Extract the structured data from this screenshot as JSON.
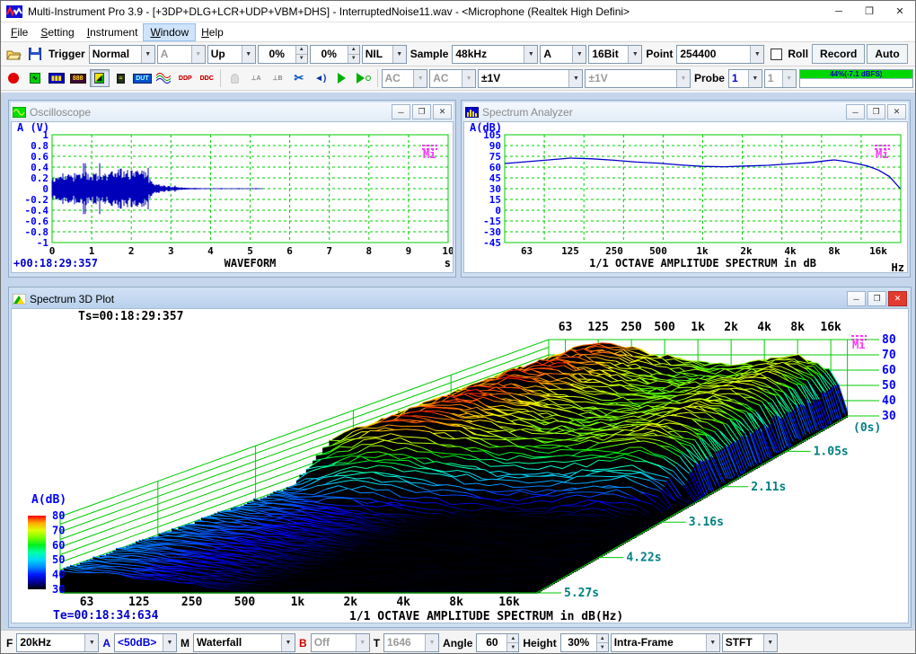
{
  "window": {
    "title": "Multi-Instrument Pro 3.9   -   [+3DP+DLG+LCR+UDP+VBM+DHS]   -   InterruptedNoise11.wav   -   <Microphone (Realtek High Defini>",
    "controls": {
      "minimize": "─",
      "maximize": "❐",
      "close": "✕"
    }
  },
  "menu": {
    "items": [
      "File",
      "Setting",
      "Instrument",
      "Window",
      "Help"
    ],
    "active_item": "Window"
  },
  "toolbar1": {
    "trigger_label": "Trigger",
    "trigger_mode": "Normal",
    "trigger_source": "A",
    "trigger_edge": "Up",
    "trigger_level": "0%",
    "trigger_delay": "0%",
    "trigger_coupling": "NIL",
    "sample_label": "Sample",
    "sample_rate": "48kHz",
    "sample_channel": "A",
    "sample_bits": "16Bit",
    "point_label": "Point",
    "point_count": "254400",
    "roll_label": "Roll",
    "record_label": "Record",
    "auto_label": "Auto"
  },
  "toolbar2": {
    "glyphs": {
      "multimeter": "888",
      "dut": "DUT",
      "ddp": "DDP",
      "ddc": "DDC",
      "marker_a": "⊥A",
      "marker_b": "⊥B"
    },
    "coupling_a": "AC",
    "coupling_b": "AC",
    "range_a": "±1V",
    "range_b": "±1V",
    "probe_label": "Probe",
    "probe_a": "1",
    "probe_b": "1",
    "level_meter_text": "44%(-7.1 dBFS)",
    "level_meter_color": "#00d800"
  },
  "windows": [
    {
      "title": "Oscilloscope"
    },
    {
      "title": "Spectrum Analyzer"
    },
    {
      "title": "Spectrum 3D Plot"
    }
  ],
  "statusbar": {
    "f_label": "F",
    "f_value": "20kHz",
    "a_label": "A",
    "a_value": "<50dB>",
    "m_label": "M",
    "m_value": "Waterfall",
    "b_label": "B",
    "b_value": "Off",
    "t_label": "T",
    "t_value": "1646",
    "angle_label": "Angle",
    "angle_value": "60",
    "height_label": "Height",
    "height_value": "30%",
    "frame_mode": "Intra-Frame",
    "transform": "STFT"
  },
  "chart_data": [
    {
      "type": "waveform",
      "corner_label": "A (V)",
      "title": "WAVEFORM",
      "x_unit": "s",
      "timestamp": "+00:18:29:357",
      "x_range_s": [
        0,
        10
      ],
      "y_range_v": [
        -1,
        1
      ],
      "y_ticks": [
        "1",
        "0.8",
        "0.6",
        "0.4",
        "0.2",
        "0",
        "-0.2",
        "-0.4",
        "-0.6",
        "-0.8",
        "-1"
      ],
      "x_ticks": [
        "0",
        "1",
        "2",
        "3",
        "4",
        "5",
        "6",
        "7",
        "8",
        "9",
        "10"
      ],
      "signal_end_s": 5.32,
      "envelope_t": [
        0,
        0.1,
        0.4,
        0.7,
        1.0,
        1.3,
        1.6,
        1.85,
        2.0,
        2.15,
        2.3,
        2.45,
        2.6,
        2.8,
        3.0,
        3.2,
        3.5,
        4.0,
        5.2,
        5.32
      ],
      "envelope_v": [
        0.26,
        0.3,
        0.28,
        0.3,
        0.31,
        0.3,
        0.34,
        0.4,
        0.36,
        0.42,
        0.36,
        0.22,
        0.12,
        0.07,
        0.045,
        0.028,
        0.015,
        0.009,
        0.007,
        0.006
      ],
      "line_color": "#0000bb",
      "grid_color": "#00cc00"
    },
    {
      "type": "line",
      "corner_label": "A(dB)",
      "title": "1/1 OCTAVE AMPLITUDE SPECTRUM in dB",
      "x_unit": "Hz",
      "y_ticks": [
        "105",
        "90",
        "75",
        "60",
        "45",
        "30",
        "15",
        "0",
        "-15",
        "-30",
        "-45"
      ],
      "y_range_db": [
        -45,
        105
      ],
      "freq_labels": [
        "63",
        "125",
        "250",
        "500",
        "1k",
        "2k",
        "4k",
        "8k",
        "16k"
      ],
      "points": {
        "freqs": [
          44.5,
          63,
          89,
          125,
          177,
          250,
          354,
          500,
          707,
          1000,
          1414,
          2000,
          2828,
          4000,
          5657,
          7127,
          8000,
          9514,
          11314,
          13454,
          16000,
          19027,
          22627
        ],
        "db": [
          65,
          67.5,
          70,
          72.5,
          71.5,
          69.5,
          67,
          65.5,
          63,
          61,
          60.5,
          61.5,
          62.5,
          64.5,
          66.5,
          69,
          70,
          68,
          65,
          61.5,
          56,
          47,
          30
        ]
      },
      "line_color": "#0000cc",
      "grid_color": "#00cc00"
    },
    {
      "type": "waterfall3d",
      "title": "1/1 OCTAVE AMPLITUDE SPECTRUM in dB(Hz)",
      "z_label": "A(dB)",
      "ts_label": "Ts=00:18:29:357",
      "te_label": "Te=00:18:34:634",
      "freq_labels": [
        "63",
        "125",
        "250",
        "500",
        "1k",
        "2k",
        "4k",
        "8k",
        "16k"
      ],
      "octave_freqs": [
        63,
        125,
        250,
        500,
        1000,
        2000,
        4000,
        8000,
        16000
      ],
      "amp_ticks": [
        80,
        70,
        60,
        50,
        40,
        30
      ],
      "amp_range": [
        30,
        80
      ],
      "time_labels": [
        "(0s)",
        "1.05s",
        "2.11s",
        "3.16s",
        "4.22s",
        "5.27s"
      ],
      "time_span_s": 5.27,
      "burst_end_s": 2.35,
      "silence_s": 3.35,
      "base_spectrum": {
        "freqs": [
          44.5,
          63,
          89,
          125,
          177,
          250,
          354,
          500,
          707,
          1000,
          1414,
          2000,
          2828,
          4000,
          5657,
          8000,
          11314,
          16000,
          19027,
          22627
        ],
        "db": [
          66,
          71,
          75,
          78,
          77,
          75,
          72.5,
          70,
          67.5,
          65.5,
          64.5,
          64.5,
          65,
          66.5,
          68,
          70,
          66,
          60,
          50,
          32
        ]
      },
      "residual_spectrum": {
        "db": [
          45,
          43.5,
          42,
          40,
          38,
          35.5,
          33,
          31,
          30,
          30,
          30,
          30,
          30,
          30,
          30,
          30,
          30,
          30,
          30,
          30
        ]
      },
      "colormap": [
        [
          30,
          "#000000"
        ],
        [
          34,
          "#000080"
        ],
        [
          39,
          "#0000ff"
        ],
        [
          44,
          "#0077ff"
        ],
        [
          49,
          "#00ccff"
        ],
        [
          53,
          "#00ffdd"
        ],
        [
          57,
          "#00ff77"
        ],
        [
          61,
          "#00ee00"
        ],
        [
          65,
          "#77ff00"
        ],
        [
          69,
          "#ccff00"
        ],
        [
          72,
          "#ffff00"
        ],
        [
          75,
          "#ffaa00"
        ],
        [
          78,
          "#ff4400"
        ],
        [
          80,
          "#ff0000"
        ]
      ],
      "grid_color": "#00cc00",
      "axis_label_color": "#0000ff",
      "time_label_color": "#008080"
    }
  ]
}
